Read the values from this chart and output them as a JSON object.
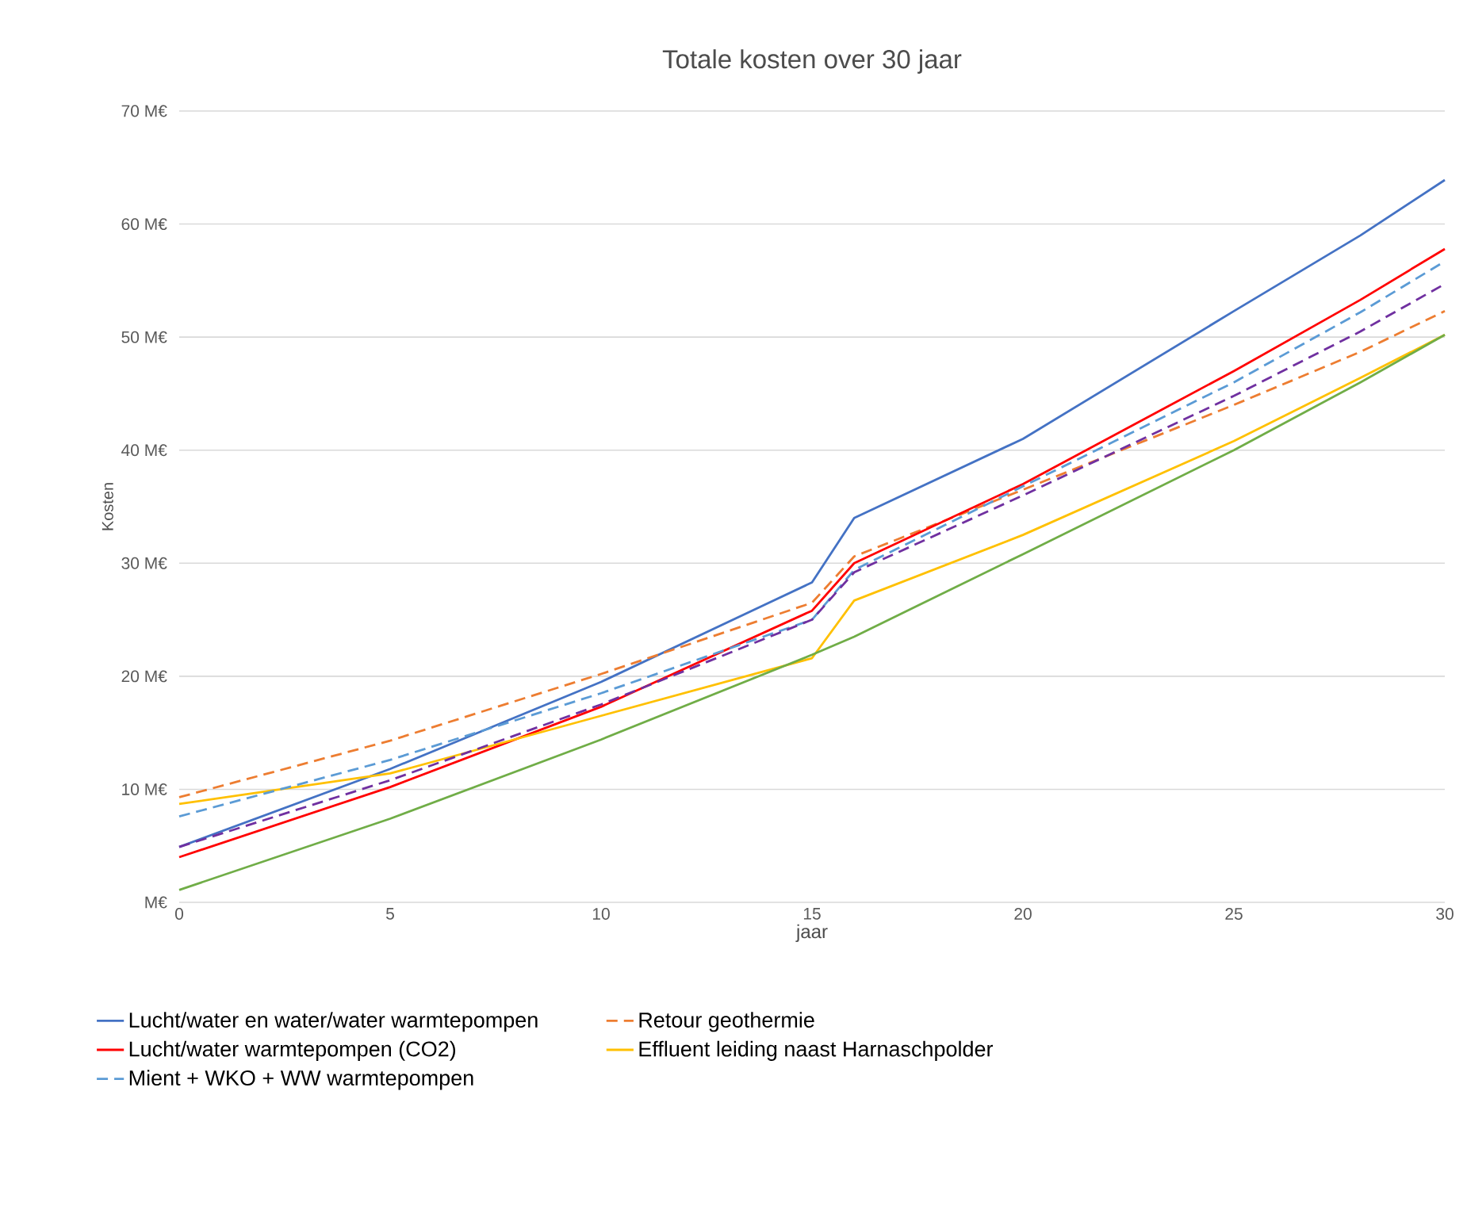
{
  "chart_data": {
    "type": "line",
    "title": "Totale kosten over 30 jaar",
    "xlabel": "jaar",
    "ylabel": "Kosten",
    "x": [
      0,
      5,
      10,
      15,
      16,
      20,
      25,
      28,
      30
    ],
    "xlim": [
      0,
      30
    ],
    "xticks": [
      0,
      5,
      10,
      15,
      20,
      25,
      30
    ],
    "ylim": [
      0,
      70
    ],
    "yticks": [
      {
        "value": 0,
        "label": "M€"
      },
      {
        "value": 10,
        "label": "10 M€"
      },
      {
        "value": 20,
        "label": "20 M€"
      },
      {
        "value": 30,
        "label": "30 M€"
      },
      {
        "value": 40,
        "label": "40 M€"
      },
      {
        "value": 50,
        "label": "50 M€"
      },
      {
        "value": 60,
        "label": "60 M€"
      },
      {
        "value": 70,
        "label": "70 M€"
      }
    ],
    "grid": "y",
    "legend": "bottom",
    "series": [
      {
        "name": "Lucht/water en water/water warmtepompen",
        "color": "#4472c4",
        "line_style": "solid",
        "values": [
          4.9,
          11.8,
          19.5,
          28.3,
          34.0,
          41.0,
          52.3,
          59.0,
          63.9
        ]
      },
      {
        "name": "Retour geothermie",
        "color": "#ed7d31",
        "line_style": "dashed",
        "values": [
          9.3,
          14.3,
          20.2,
          26.5,
          30.6,
          36.5,
          44.0,
          48.7,
          52.3
        ]
      },
      {
        "name": "Lucht/water warmtepompen (CO2)",
        "color": "#ff0000",
        "line_style": "solid",
        "values": [
          4.0,
          10.2,
          17.3,
          25.8,
          30.0,
          37.0,
          47.0,
          53.3,
          57.8
        ]
      },
      {
        "name": "Effluent leiding naast Harnaschpolder",
        "color": "#ffc000",
        "line_style": "solid",
        "values": [
          8.7,
          11.4,
          16.5,
          21.6,
          26.7,
          32.5,
          40.8,
          46.4,
          50.2
        ]
      },
      {
        "name": "Mient + WKO + WW warmtepompen",
        "color": "#5b9bd5",
        "line_style": "dashed",
        "values": [
          7.6,
          12.6,
          18.5,
          25.0,
          29.4,
          36.8,
          46.0,
          52.2,
          56.7
        ]
      },
      {
        "color": "#7030a0",
        "line_style": "dashed",
        "values": [
          4.9,
          10.8,
          17.5,
          25.0,
          29.2,
          36.0,
          44.8,
          50.5,
          54.7
        ]
      },
      {
        "color": "#70ad47",
        "line_style": "solid",
        "values": [
          1.1,
          7.4,
          14.4,
          21.9,
          23.5,
          30.8,
          40.0,
          46.0,
          50.2
        ]
      }
    ]
  }
}
